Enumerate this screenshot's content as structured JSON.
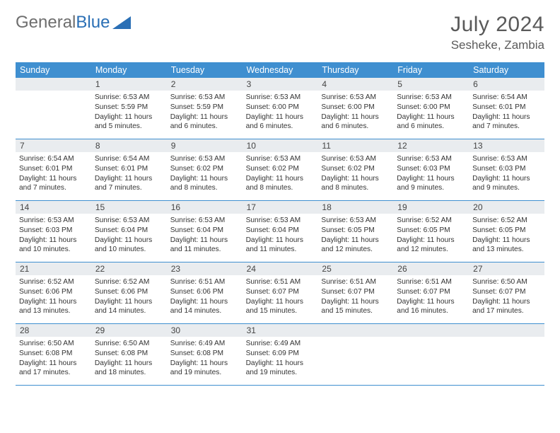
{
  "brand": {
    "part1": "General",
    "part2": "Blue"
  },
  "title": {
    "month": "July 2024",
    "location": "Sesheke, Zambia"
  },
  "colors": {
    "header_bg": "#3f8fd0",
    "header_text": "#ffffff",
    "daynum_bg": "#e9ecef",
    "week_border": "#3f8fd0",
    "brand_gray": "#6e6e6e",
    "brand_blue": "#2a6fb5"
  },
  "day_names": [
    "Sunday",
    "Monday",
    "Tuesday",
    "Wednesday",
    "Thursday",
    "Friday",
    "Saturday"
  ],
  "weeks": [
    [
      null,
      {
        "n": "1",
        "sr": "6:53 AM",
        "ss": "5:59 PM",
        "dl": "11 hours and 5 minutes."
      },
      {
        "n": "2",
        "sr": "6:53 AM",
        "ss": "5:59 PM",
        "dl": "11 hours and 6 minutes."
      },
      {
        "n": "3",
        "sr": "6:53 AM",
        "ss": "6:00 PM",
        "dl": "11 hours and 6 minutes."
      },
      {
        "n": "4",
        "sr": "6:53 AM",
        "ss": "6:00 PM",
        "dl": "11 hours and 6 minutes."
      },
      {
        "n": "5",
        "sr": "6:53 AM",
        "ss": "6:00 PM",
        "dl": "11 hours and 6 minutes."
      },
      {
        "n": "6",
        "sr": "6:54 AM",
        "ss": "6:01 PM",
        "dl": "11 hours and 7 minutes."
      }
    ],
    [
      {
        "n": "7",
        "sr": "6:54 AM",
        "ss": "6:01 PM",
        "dl": "11 hours and 7 minutes."
      },
      {
        "n": "8",
        "sr": "6:54 AM",
        "ss": "6:01 PM",
        "dl": "11 hours and 7 minutes."
      },
      {
        "n": "9",
        "sr": "6:53 AM",
        "ss": "6:02 PM",
        "dl": "11 hours and 8 minutes."
      },
      {
        "n": "10",
        "sr": "6:53 AM",
        "ss": "6:02 PM",
        "dl": "11 hours and 8 minutes."
      },
      {
        "n": "11",
        "sr": "6:53 AM",
        "ss": "6:02 PM",
        "dl": "11 hours and 8 minutes."
      },
      {
        "n": "12",
        "sr": "6:53 AM",
        "ss": "6:03 PM",
        "dl": "11 hours and 9 minutes."
      },
      {
        "n": "13",
        "sr": "6:53 AM",
        "ss": "6:03 PM",
        "dl": "11 hours and 9 minutes."
      }
    ],
    [
      {
        "n": "14",
        "sr": "6:53 AM",
        "ss": "6:03 PM",
        "dl": "11 hours and 10 minutes."
      },
      {
        "n": "15",
        "sr": "6:53 AM",
        "ss": "6:04 PM",
        "dl": "11 hours and 10 minutes."
      },
      {
        "n": "16",
        "sr": "6:53 AM",
        "ss": "6:04 PM",
        "dl": "11 hours and 11 minutes."
      },
      {
        "n": "17",
        "sr": "6:53 AM",
        "ss": "6:04 PM",
        "dl": "11 hours and 11 minutes."
      },
      {
        "n": "18",
        "sr": "6:53 AM",
        "ss": "6:05 PM",
        "dl": "11 hours and 12 minutes."
      },
      {
        "n": "19",
        "sr": "6:52 AM",
        "ss": "6:05 PM",
        "dl": "11 hours and 12 minutes."
      },
      {
        "n": "20",
        "sr": "6:52 AM",
        "ss": "6:05 PM",
        "dl": "11 hours and 13 minutes."
      }
    ],
    [
      {
        "n": "21",
        "sr": "6:52 AM",
        "ss": "6:06 PM",
        "dl": "11 hours and 13 minutes."
      },
      {
        "n": "22",
        "sr": "6:52 AM",
        "ss": "6:06 PM",
        "dl": "11 hours and 14 minutes."
      },
      {
        "n": "23",
        "sr": "6:51 AM",
        "ss": "6:06 PM",
        "dl": "11 hours and 14 minutes."
      },
      {
        "n": "24",
        "sr": "6:51 AM",
        "ss": "6:07 PM",
        "dl": "11 hours and 15 minutes."
      },
      {
        "n": "25",
        "sr": "6:51 AM",
        "ss": "6:07 PM",
        "dl": "11 hours and 15 minutes."
      },
      {
        "n": "26",
        "sr": "6:51 AM",
        "ss": "6:07 PM",
        "dl": "11 hours and 16 minutes."
      },
      {
        "n": "27",
        "sr": "6:50 AM",
        "ss": "6:07 PM",
        "dl": "11 hours and 17 minutes."
      }
    ],
    [
      {
        "n": "28",
        "sr": "6:50 AM",
        "ss": "6:08 PM",
        "dl": "11 hours and 17 minutes."
      },
      {
        "n": "29",
        "sr": "6:50 AM",
        "ss": "6:08 PM",
        "dl": "11 hours and 18 minutes."
      },
      {
        "n": "30",
        "sr": "6:49 AM",
        "ss": "6:08 PM",
        "dl": "11 hours and 19 minutes."
      },
      {
        "n": "31",
        "sr": "6:49 AM",
        "ss": "6:09 PM",
        "dl": "11 hours and 19 minutes."
      },
      null,
      null,
      null
    ]
  ],
  "labels": {
    "sunrise": "Sunrise:",
    "sunset": "Sunset:",
    "daylight": "Daylight:"
  }
}
